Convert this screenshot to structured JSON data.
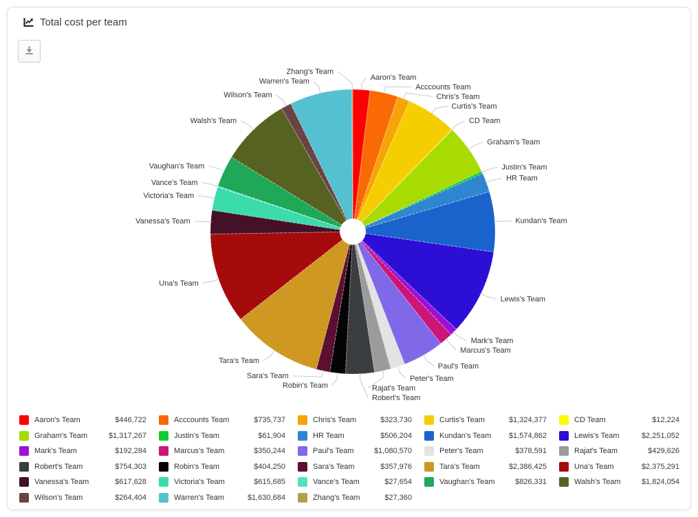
{
  "card": {
    "title": "Total cost per team"
  },
  "icons": {
    "header": "chart-line-icon",
    "toolbar": "download-icon"
  },
  "colors": {
    "connector": "#c9c9c9",
    "label_text": "#333333",
    "card_border": "#e0e0e0"
  },
  "chart_data": {
    "type": "pie",
    "title": "Total cost per team",
    "donut": true,
    "legend_position": "bottom",
    "series": [
      {
        "label": "Aaron's Team",
        "value": 446722,
        "display_value": "$446,722",
        "color": "#FE0002"
      },
      {
        "label": "Acccounts Team",
        "value": 735737,
        "display_value": "$735,737",
        "color": "#F96A06"
      },
      {
        "label": "Chris's Team",
        "value": 323730,
        "display_value": "$323,730",
        "color": "#F6A408"
      },
      {
        "label": "Curtis's Team",
        "value": 1324377,
        "display_value": "$1,324,377",
        "color": "#F5CE02"
      },
      {
        "label": "CD Team",
        "value": 12224,
        "display_value": "$12,224",
        "color": "#FBFB04"
      },
      {
        "label": "Graham's Team",
        "value": 1317267,
        "display_value": "$1,317,267",
        "color": "#A8DB02"
      },
      {
        "label": "Justin's Team",
        "value": 61904,
        "display_value": "$61,904",
        "color": "#0CCE34"
      },
      {
        "label": "HR Team",
        "value": 506204,
        "display_value": "$506,204",
        "color": "#2E86D1"
      },
      {
        "label": "Kundan's Team",
        "value": 1574862,
        "display_value": "$1,574,862",
        "color": "#1A63CD"
      },
      {
        "label": "Lewis's Team",
        "value": 2251052,
        "display_value": "$2,251,052",
        "color": "#2C0FD5"
      },
      {
        "label": "Mark's Team",
        "value": 192284,
        "display_value": "$192,284",
        "color": "#9D10D8"
      },
      {
        "label": "Marcus's Team",
        "value": 350244,
        "display_value": "$350,244",
        "color": "#CC1577"
      },
      {
        "label": "Paul's Team",
        "value": 1080570,
        "display_value": "$1,080,570",
        "color": "#8168E8"
      },
      {
        "label": "Peter's Team",
        "value": 378591,
        "display_value": "$378,591",
        "color": "#E3E3E3"
      },
      {
        "label": "Rajat's Team",
        "value": 429626,
        "display_value": "$429,626",
        "color": "#9B9B9B"
      },
      {
        "label": "Robert's Team",
        "value": 754303,
        "display_value": "$754,303",
        "color": "#3B3E40"
      },
      {
        "label": "Robin's Team",
        "value": 404250,
        "display_value": "$404,250",
        "color": "#050505"
      },
      {
        "label": "Sara's Team",
        "value": 357976,
        "display_value": "$357,976",
        "color": "#5C0F33"
      },
      {
        "label": "Tara's Team",
        "value": 2386425,
        "display_value": "$2,386,425",
        "color": "#CE9823"
      },
      {
        "label": "Una's Team",
        "value": 2375291,
        "display_value": "$2,375,291",
        "color": "#A50B0B"
      },
      {
        "label": "Vanessa's Team",
        "value": 617628,
        "display_value": "$617,628",
        "color": "#451129"
      },
      {
        "label": "Victoria's Team",
        "value": 615685,
        "display_value": "$615,685",
        "color": "#3BDBAC"
      },
      {
        "label": "Vance's Team",
        "value": 27654,
        "display_value": "$27,654",
        "color": "#50E3C2"
      },
      {
        "label": "Vaughan's Team",
        "value": 826331,
        "display_value": "$826,331",
        "color": "#1FA857"
      },
      {
        "label": "Walsh's Team",
        "value": 1824054,
        "display_value": "$1,824,054",
        "color": "#556221"
      },
      {
        "label": "Wilson's Team",
        "value": 264404,
        "display_value": "$264,404",
        "color": "#6A4345"
      },
      {
        "label": "Warren's Team",
        "value": 1630684,
        "display_value": "$1,630,684",
        "color": "#55C0CF"
      },
      {
        "label": "Zhang's Team",
        "value": 27360,
        "display_value": "$27,360",
        "color": "#B0A14C"
      }
    ]
  }
}
